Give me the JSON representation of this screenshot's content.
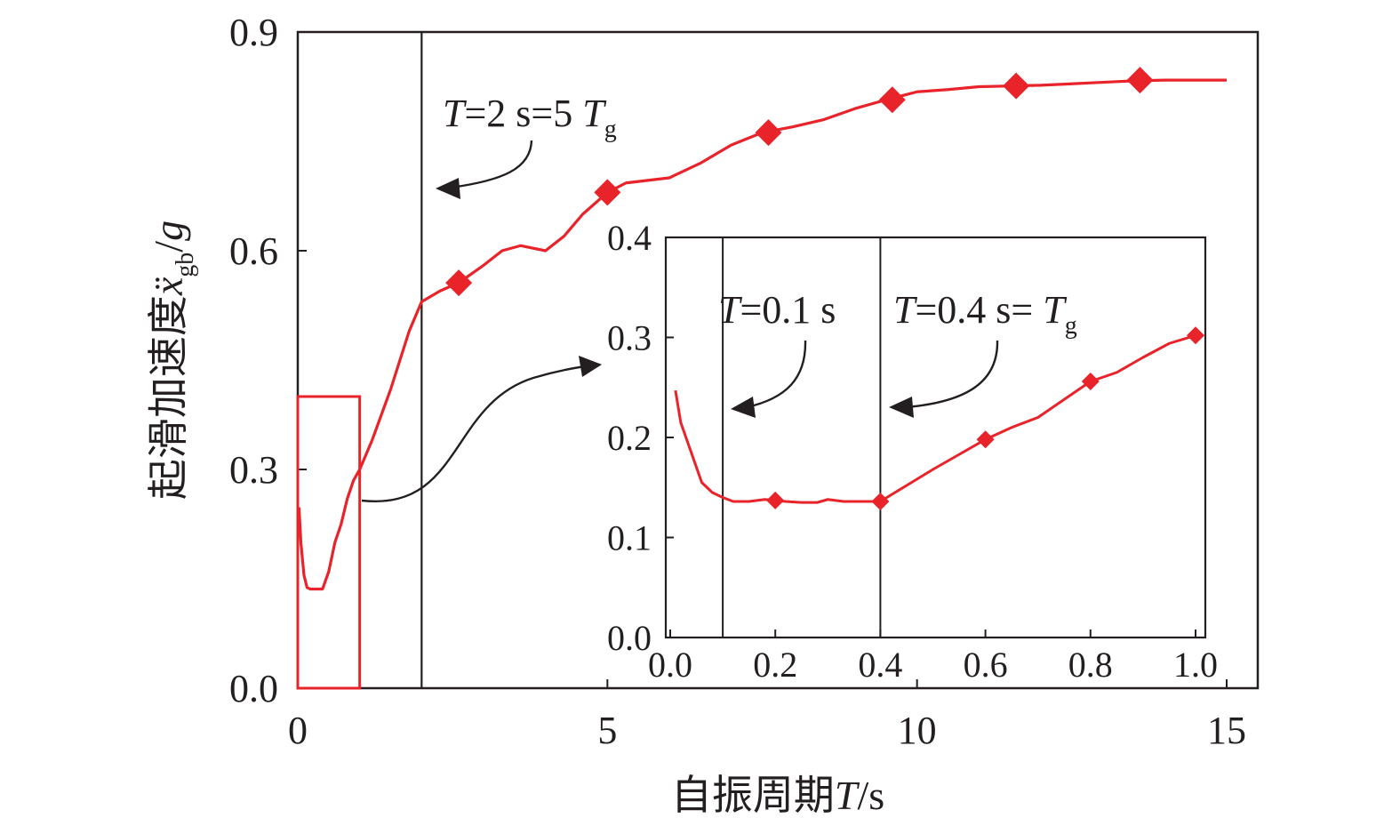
{
  "chart_data": [
    {
      "type": "line",
      "xlabel": "自振周期T/s",
      "ylabel": "起滑加速度ẍgb/g",
      "xlim": [
        0,
        15
      ],
      "ylim": [
        0,
        0.9
      ],
      "x_ticks": [
        "0",
        "5",
        "10",
        "15"
      ],
      "y_ticks": [
        "0.0",
        "0.3",
        "0.6",
        "0.9"
      ],
      "grid": false,
      "series": [
        {
          "color": "#e8232a",
          "marker": "diamond",
          "x": [
            0.02,
            0.05,
            0.1,
            0.15,
            0.2,
            0.3,
            0.4,
            0.5,
            0.6,
            0.7,
            0.8,
            0.9,
            1.0,
            1.2,
            1.5,
            1.8,
            2.0,
            2.3,
            2.6,
            3.0,
            3.3,
            3.6,
            4.0,
            4.3,
            4.6,
            5.0,
            5.3,
            6.0,
            6.5,
            7.0,
            7.5,
            8.0,
            8.5,
            9.0,
            9.5,
            10.0,
            10.5,
            11.0,
            11.5,
            12.0,
            12.5,
            13.0,
            13.5,
            14.0,
            14.5,
            15.0
          ],
          "y": [
            0.248,
            0.2,
            0.155,
            0.138,
            0.136,
            0.136,
            0.136,
            0.16,
            0.2,
            0.225,
            0.26,
            0.285,
            0.3,
            0.34,
            0.41,
            0.49,
            0.53,
            0.545,
            0.556,
            0.58,
            0.6,
            0.607,
            0.6,
            0.62,
            0.65,
            0.68,
            0.693,
            0.7,
            0.72,
            0.745,
            0.762,
            0.77,
            0.78,
            0.795,
            0.807,
            0.818,
            0.821,
            0.825,
            0.826,
            0.827,
            0.829,
            0.831,
            0.833,
            0.834,
            0.834,
            0.834
          ],
          "marker_x": [
            2.6,
            5.0,
            7.6,
            9.6,
            11.6,
            13.6
          ],
          "marker_y": [
            0.556,
            0.68,
            0.762,
            0.807,
            0.826,
            0.834
          ]
        }
      ],
      "vlines": [
        2.0
      ],
      "highlight_box": {
        "x": [
          0,
          1.0
        ],
        "y": [
          0,
          0.4
        ],
        "color": "#e8232a"
      },
      "annotations": [
        {
          "text": "T=2 s=5 T",
          "subscript": "g"
        }
      ]
    },
    {
      "type": "line",
      "inset": true,
      "xlim": [
        0,
        1.0
      ],
      "ylim": [
        0,
        0.4
      ],
      "x_ticks": [
        "0.0",
        "0.2",
        "0.4",
        "0.6",
        "0.8",
        "1.0"
      ],
      "y_ticks": [
        "0.0",
        "0.1",
        "0.2",
        "0.3",
        "0.4"
      ],
      "grid": false,
      "series": [
        {
          "color": "#e8232a",
          "marker": "diamond",
          "x": [
            0.01,
            0.02,
            0.04,
            0.06,
            0.08,
            0.1,
            0.12,
            0.15,
            0.18,
            0.2,
            0.22,
            0.25,
            0.28,
            0.3,
            0.33,
            0.36,
            0.4,
            0.45,
            0.5,
            0.55,
            0.6,
            0.65,
            0.7,
            0.75,
            0.8,
            0.85,
            0.9,
            0.95,
            1.0
          ],
          "y": [
            0.247,
            0.215,
            0.185,
            0.155,
            0.145,
            0.14,
            0.136,
            0.136,
            0.138,
            0.137,
            0.136,
            0.135,
            0.135,
            0.138,
            0.136,
            0.136,
            0.136,
            0.152,
            0.168,
            0.183,
            0.198,
            0.21,
            0.22,
            0.238,
            0.256,
            0.265,
            0.28,
            0.294,
            0.302
          ],
          "marker_x": [
            0.2,
            0.4,
            0.6,
            0.8,
            1.0
          ],
          "marker_y": [
            0.137,
            0.136,
            0.198,
            0.256,
            0.302
          ]
        }
      ],
      "vlines": [
        0.1,
        0.4
      ],
      "annotations": [
        {
          "text": "T=0.1 s"
        },
        {
          "text": "T=0.4 s= T",
          "subscript": "g"
        }
      ]
    }
  ],
  "labels": {
    "xlabel_prefix": "自振周期",
    "xlabel_var": "T",
    "xlabel_unit": "/s",
    "ylabel_prefix": "起滑加速度",
    "ylabel_var": "ẍ",
    "ylabel_sub": "gb",
    "ylabel_suffix": "/",
    "ylabel_g": "g",
    "ann_main_T": "T",
    "ann_main_rest": "=2 s=5 ",
    "ann_main_T2": "T",
    "ann_main_sub": "g",
    "ann_inset1_T": "T",
    "ann_inset1_rest": "=0.1 s",
    "ann_inset2_T": "T",
    "ann_inset2_rest": "=0.4 s= ",
    "ann_inset2_T2": "T",
    "ann_inset2_sub": "g"
  }
}
